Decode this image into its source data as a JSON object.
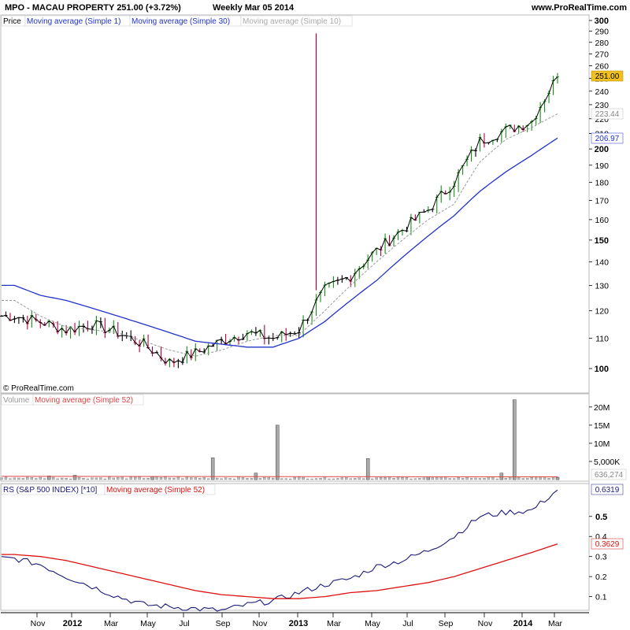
{
  "header": {
    "symbol_line": "MPO - MACAU PROPERTY     251.00 (+3.72%)",
    "period_line": "Weekly  Mar 05 2014",
    "site": "www.ProRealTime.com"
  },
  "watermark": "© ProRealTime.com",
  "colors": {
    "up": "#1a8a1a",
    "down": "#b0003a",
    "neutral": "#000000",
    "ma30": "#2233cc",
    "ma10": "#999999",
    "rs": "#1a1a7a",
    "rs_ma": "#dd1111",
    "volume": "#999999",
    "last_price_tag": "#f0c020"
  },
  "price_panel": {
    "legend": [
      "Price",
      "Moving average (Simple 1)",
      "Moving average (Simple 30)",
      "Moving average (Simple 10)"
    ],
    "y_ticks": [
      "300",
      "290",
      "280",
      "270",
      "260",
      "250",
      "240",
      "230",
      "220",
      "210",
      "200",
      "190",
      "180",
      "170",
      "160",
      "150",
      "140",
      "130",
      "120",
      "110",
      "100"
    ],
    "y_ticks_bold": [
      "300",
      "200",
      "150",
      "100"
    ],
    "value_tags": {
      "last": "251.00",
      "ma10": "223.44",
      "ma30": "206.97"
    }
  },
  "volume_panel": {
    "legend": [
      "Volume",
      "Moving average (Simple 52)"
    ],
    "y_ticks": [
      "20M",
      "15M",
      "10M",
      "5,000K"
    ],
    "value_tag": "636,274"
  },
  "rs_panel": {
    "legend": [
      "RS (S&P 500 INDEX) [*10]",
      "Moving average (Simple 52)"
    ],
    "y_ticks": [
      "0.5",
      "0.4",
      "0.3",
      "0.2",
      "0.1"
    ],
    "y_ticks_bold": [
      "0.5"
    ],
    "value_tags": {
      "rs": "0.6319",
      "ma": "0.3629"
    }
  },
  "x_axis": {
    "labels": [
      {
        "text": "Nov",
        "bold": false
      },
      {
        "text": "2012",
        "bold": true
      },
      {
        "text": "Mar",
        "bold": false
      },
      {
        "text": "May",
        "bold": false
      },
      {
        "text": "Jul",
        "bold": false
      },
      {
        "text": "Sep",
        "bold": false
      },
      {
        "text": "Nov",
        "bold": false
      },
      {
        "text": "2013",
        "bold": true
      },
      {
        "text": "Mar",
        "bold": false
      },
      {
        "text": "May",
        "bold": false
      },
      {
        "text": "Jul",
        "bold": false
      },
      {
        "text": "Sep",
        "bold": false
      },
      {
        "text": "Nov",
        "bold": false
      },
      {
        "text": "2014",
        "bold": true
      },
      {
        "text": "Mar",
        "bold": false
      }
    ]
  },
  "chart_data": [
    {
      "type": "line",
      "title": "MPO - MACAU PROPERTY",
      "x": [
        "2011-10-05",
        "2011-11-16",
        "2011-12-28",
        "2012-02-08",
        "2012-03-21",
        "2012-05-02",
        "2012-06-13",
        "2012-07-25",
        "2012-09-05",
        "2012-10-17",
        "2012-11-28",
        "2013-01-09",
        "2013-02-20",
        "2013-04-03",
        "2013-05-15",
        "2013-06-26",
        "2013-08-07",
        "2013-09-18",
        "2013-10-30",
        "2013-12-11",
        "2014-01-22",
        "2014-03-05"
      ],
      "series": [
        {
          "name": "Price",
          "values": [
            118,
            116,
            113,
            115,
            112,
            108,
            102,
            105,
            109,
            112,
            110,
            113,
            128,
            134,
            145,
            155,
            165,
            180,
            205,
            212,
            218,
            251
          ]
        },
        {
          "name": "Moving average (Simple 30)",
          "values": [
            130,
            126,
            124,
            121,
            118,
            115,
            112,
            109,
            108,
            107,
            107,
            110,
            116,
            124,
            132,
            142,
            152,
            162,
            175,
            186,
            196,
            206.97
          ]
        },
        {
          "name": "Moving average (Simple 10)",
          "values": [
            124,
            118,
            114,
            113,
            112,
            109,
            106,
            104,
            106,
            109,
            111,
            111,
            120,
            130,
            140,
            150,
            160,
            168,
            192,
            206,
            214,
            223.44
          ]
        }
      ],
      "y_scale": "log",
      "ylim": [
        93,
        300
      ],
      "spike": {
        "date": "2013-02-06",
        "high": 288
      }
    },
    {
      "type": "bar",
      "title": "Volume",
      "x": [
        "2011-11-30",
        "2012-01-11",
        "2012-05-16",
        "2012-08-22",
        "2012-10-31",
        "2012-12-05",
        "2013-05-01",
        "2013-08-07",
        "2013-12-04",
        "2013-12-25",
        "2014-03-05"
      ],
      "values": [
        1.0,
        1.2,
        0.8,
        6.0,
        1.8,
        15.0,
        5.8,
        0.8,
        1.8,
        22.0,
        0.636274
      ],
      "unit": "M",
      "ylim": [
        0,
        23
      ]
    },
    {
      "type": "line",
      "title": "RS (S&P 500 INDEX) [*10]",
      "x": [
        "2011-10-05",
        "2011-11-16",
        "2011-12-28",
        "2012-02-08",
        "2012-03-21",
        "2012-05-02",
        "2012-06-13",
        "2012-07-25",
        "2012-09-05",
        "2012-10-17",
        "2012-11-28",
        "2013-01-09",
        "2013-02-20",
        "2013-04-03",
        "2013-05-15",
        "2013-06-26",
        "2013-08-07",
        "2013-09-18",
        "2013-10-30",
        "2013-12-11",
        "2014-01-22",
        "2014-03-05"
      ],
      "series": [
        {
          "name": "RS (S&P 500 INDEX) [*10]",
          "values": [
            0.29,
            0.26,
            0.2,
            0.15,
            0.1,
            0.06,
            0.05,
            0.04,
            0.03,
            0.06,
            0.08,
            0.12,
            0.16,
            0.19,
            0.25,
            0.28,
            0.33,
            0.4,
            0.5,
            0.52,
            0.53,
            0.6319
          ]
        },
        {
          "name": "Moving average (Simple 52)",
          "values": [
            0.31,
            0.3,
            0.28,
            0.25,
            0.22,
            0.19,
            0.16,
            0.13,
            0.11,
            0.1,
            0.09,
            0.09,
            0.1,
            0.12,
            0.13,
            0.15,
            0.17,
            0.2,
            0.24,
            0.28,
            0.32,
            0.3629
          ]
        }
      ],
      "ylim": [
        0.02,
        0.66
      ]
    }
  ]
}
